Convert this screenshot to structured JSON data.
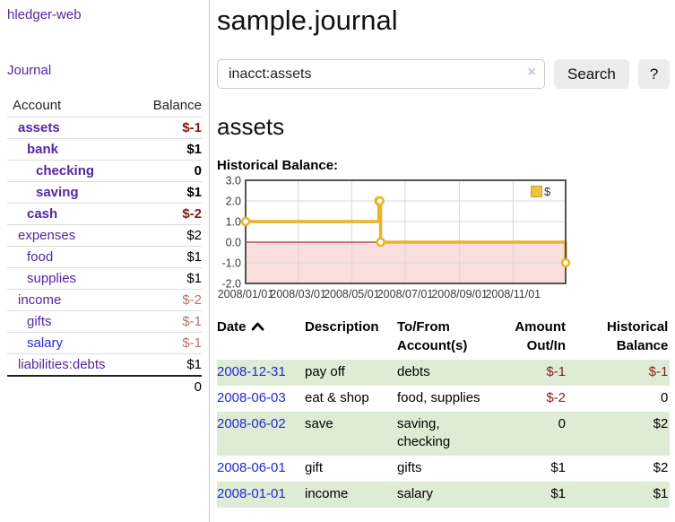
{
  "colors": {
    "accent_purple": "#5428a0",
    "link_blue": "#2228d2",
    "negative_strong": "#8c1214",
    "negative_muted": "#b9706f",
    "row_stripe_green": "#deecd5",
    "chart_line_gold": "#e7b42a"
  },
  "sidebar": {
    "brand": "hledger-web",
    "nav_journal": "Journal",
    "headers": {
      "account": "Account",
      "balance": "Balance"
    },
    "accounts": [
      {
        "name": "assets",
        "balance": "$-1"
      },
      {
        "name": "bank",
        "balance": "$1"
      },
      {
        "name": "checking",
        "balance": "0"
      },
      {
        "name": "saving",
        "balance": "$1"
      },
      {
        "name": "cash",
        "balance": "$-2"
      },
      {
        "name": "expenses",
        "balance": "$2"
      },
      {
        "name": "food",
        "balance": "$1"
      },
      {
        "name": "supplies",
        "balance": "$1"
      },
      {
        "name": "income",
        "balance": "$-2"
      },
      {
        "name": "gifts",
        "balance": "$-1"
      },
      {
        "name": "salary",
        "balance": "$-1"
      },
      {
        "name": "liabilities:debts",
        "balance": "$1"
      }
    ],
    "total_balance": "0"
  },
  "main": {
    "title": "sample.journal",
    "search": {
      "value": "inacct:assets",
      "clear": "×",
      "search_button": "Search",
      "help_button": "?"
    },
    "account_heading": "assets",
    "chart_label": "Historical Balance:",
    "register": {
      "headers": {
        "date": "Date",
        "description": "Description",
        "accounts": "To/From Account(s)",
        "amount": "Amount Out/In",
        "balance": "Historical Balance"
      },
      "rows": [
        {
          "date": "2008-12-31",
          "description": "pay off",
          "accounts": "debts",
          "amount": "$-1",
          "balance": "$-1"
        },
        {
          "date": "2008-06-03",
          "description": "eat & shop",
          "accounts": "food, supplies",
          "amount": "$-2",
          "balance": "0"
        },
        {
          "date": "2008-06-02",
          "description": "save",
          "accounts": "saving, checking",
          "amount": "0",
          "balance": "$2"
        },
        {
          "date": "2008-06-01",
          "description": "gift",
          "accounts": "gifts",
          "amount": "$1",
          "balance": "$2"
        },
        {
          "date": "2008-01-01",
          "description": "income",
          "accounts": "salary",
          "amount": "$1",
          "balance": "$1"
        }
      ]
    }
  },
  "chart_data": {
    "type": "line",
    "step": true,
    "title": "Historical Balance",
    "legend": "$",
    "xmin": "2008-01-01",
    "xmax": "2008-12-31",
    "ylim": [
      -2,
      3
    ],
    "yticks": [
      "3.0",
      "2.0",
      "1.0",
      "0.0",
      "-1.0",
      "-2.0"
    ],
    "xticks": [
      "2008/01/01",
      "2008/03/01",
      "2008/05/01",
      "2008/07/01",
      "2008/09/01",
      "2008/11/01"
    ],
    "series": [
      {
        "name": "$",
        "points": [
          [
            "2008-01-01",
            1
          ],
          [
            "2008-06-01",
            2
          ],
          [
            "2008-06-02",
            2
          ],
          [
            "2008-06-03",
            0
          ],
          [
            "2008-12-31",
            -1
          ]
        ]
      }
    ],
    "colors": {
      "line": "#e7b42a",
      "negative_region": "#fbdede",
      "zero_line": "#8b0000",
      "grid": "#d7d7d7",
      "border": "#545454"
    }
  }
}
